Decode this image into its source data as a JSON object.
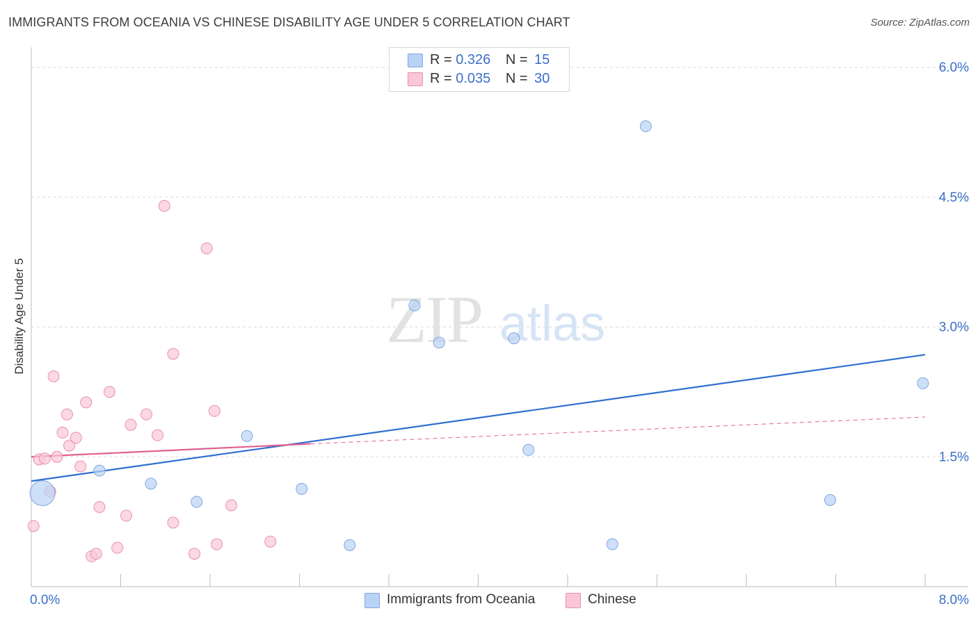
{
  "title": "IMMIGRANTS FROM OCEANIA VS CHINESE DISABILITY AGE UNDER 5 CORRELATION CHART",
  "source": "Source: ZipAtlas.com",
  "watermark": {
    "zip": "ZIP",
    "atlas": "atlas"
  },
  "legend": {
    "r_label": "R =",
    "n_label": "N =",
    "rows": [
      {
        "name": "Immigrants from Oceania",
        "r": "0.326",
        "n": "15"
      },
      {
        "name": "Chinese",
        "r": "0.035",
        "n": "30"
      }
    ]
  },
  "colors": {
    "blue_fill": "#b9d3f5",
    "blue_stroke": "#7fa6e0",
    "blue_line": "#2f6fd0",
    "pink_fill": "#f9c7d6",
    "pink_stroke": "#e890ad",
    "pink_line": "#e0608e",
    "tick_label": "#3b6fc9",
    "grid": "#d9d9d9"
  },
  "chart_data": {
    "type": "scatter",
    "title": "IMMIGRANTS FROM OCEANIA VS CHINESE DISABILITY AGE UNDER 5 CORRELATION CHART",
    "xlabel": "",
    "ylabel": "Disability Age Under 5",
    "xlim": [
      0.0,
      8.0
    ],
    "ylim": [
      0.0,
      6.0
    ],
    "x_tick_labels": [
      "0.0%",
      "8.0%"
    ],
    "y_ticks": [
      1.5,
      3.0,
      4.5,
      6.0
    ],
    "y_tick_labels": [
      "1.5%",
      "3.0%",
      "4.5%",
      "6.0%"
    ],
    "grid": true,
    "series": [
      {
        "name": "Immigrants from Oceania",
        "color": "#7fa6e0",
        "points": [
          {
            "x": 0.1,
            "y": 1.08,
            "size": "large"
          },
          {
            "x": 0.61,
            "y": 1.34
          },
          {
            "x": 1.07,
            "y": 1.19
          },
          {
            "x": 1.48,
            "y": 0.98
          },
          {
            "x": 1.93,
            "y": 1.74
          },
          {
            "x": 2.42,
            "y": 1.13
          },
          {
            "x": 2.85,
            "y": 0.48
          },
          {
            "x": 3.43,
            "y": 3.25
          },
          {
            "x": 3.65,
            "y": 2.82
          },
          {
            "x": 4.32,
            "y": 2.87
          },
          {
            "x": 4.45,
            "y": 1.58
          },
          {
            "x": 5.2,
            "y": 0.49
          },
          {
            "x": 5.5,
            "y": 5.32
          },
          {
            "x": 7.15,
            "y": 1.0
          },
          {
            "x": 7.98,
            "y": 2.35
          }
        ],
        "trend": {
          "x0": 0.0,
          "y0": 1.22,
          "x1": 8.0,
          "y1": 2.68
        }
      },
      {
        "name": "Chinese",
        "color": "#e890ad",
        "points": [
          {
            "x": 0.02,
            "y": 0.7
          },
          {
            "x": 0.07,
            "y": 1.47
          },
          {
            "x": 0.12,
            "y": 1.48
          },
          {
            "x": 0.17,
            "y": 1.1
          },
          {
            "x": 0.2,
            "y": 2.43
          },
          {
            "x": 0.23,
            "y": 1.5
          },
          {
            "x": 0.28,
            "y": 1.78
          },
          {
            "x": 0.32,
            "y": 1.99
          },
          {
            "x": 0.34,
            "y": 1.63
          },
          {
            "x": 0.4,
            "y": 1.72
          },
          {
            "x": 0.44,
            "y": 1.39
          },
          {
            "x": 0.49,
            "y": 2.13
          },
          {
            "x": 0.54,
            "y": 0.35
          },
          {
            "x": 0.58,
            "y": 0.38
          },
          {
            "x": 0.61,
            "y": 0.92
          },
          {
            "x": 0.7,
            "y": 2.25
          },
          {
            "x": 0.77,
            "y": 0.45
          },
          {
            "x": 0.85,
            "y": 0.82
          },
          {
            "x": 0.89,
            "y": 1.87
          },
          {
            "x": 1.03,
            "y": 1.99
          },
          {
            "x": 1.13,
            "y": 1.75
          },
          {
            "x": 1.19,
            "y": 4.4
          },
          {
            "x": 1.27,
            "y": 0.74
          },
          {
            "x": 1.27,
            "y": 2.69
          },
          {
            "x": 1.46,
            "y": 0.38
          },
          {
            "x": 1.57,
            "y": 3.91
          },
          {
            "x": 1.66,
            "y": 0.49
          },
          {
            "x": 1.64,
            "y": 2.03
          },
          {
            "x": 1.79,
            "y": 0.94
          },
          {
            "x": 2.14,
            "y": 0.52
          }
        ],
        "trend": {
          "x0": 0.0,
          "y0": 1.5,
          "x1": 2.5,
          "y1": 1.65
        },
        "trend_extension": {
          "x0": 2.5,
          "y0": 1.65,
          "x1": 8.0,
          "y1": 1.96
        }
      }
    ]
  }
}
